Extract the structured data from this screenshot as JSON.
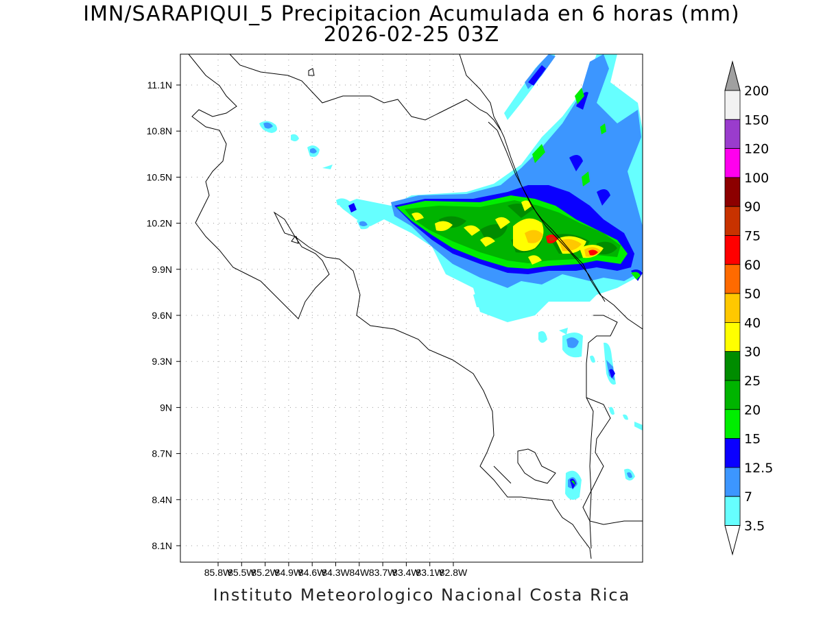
{
  "title": {
    "line1": "IMN/SARAPIQUI_5 Precipitacion Acumulada en 6 horas (mm)",
    "line2": "2026-02-25 03Z"
  },
  "credit": "Instituto Meteorologico Nacional Costa Rica",
  "map": {
    "lon_range": [
      -86.0,
      -83.0
    ],
    "lat_range": [
      8.0,
      11.2
    ],
    "grid": "dotted",
    "lon_labels": [
      {
        "lon": -85.8,
        "text": "85.8W"
      },
      {
        "lon": -85.5,
        "text": "85.5W"
      },
      {
        "lon": -85.2,
        "text": "85.2W"
      },
      {
        "lon": -84.9,
        "text": "84.9W"
      },
      {
        "lon": -84.6,
        "text": "84.6W"
      },
      {
        "lon": -84.3,
        "text": "84.3W"
      },
      {
        "lon": -84.0,
        "text": "84W"
      },
      {
        "lon": -83.7,
        "text": "83.7W"
      },
      {
        "lon": -83.4,
        "text": "83.4W"
      },
      {
        "lon": -83.1,
        "text": "83.1W"
      },
      {
        "lon": -82.8,
        "text": "82.8W"
      }
    ],
    "lat_labels": [
      {
        "lat": 11.1,
        "text": "11.1N"
      },
      {
        "lat": 10.8,
        "text": "10.8N"
      },
      {
        "lat": 10.5,
        "text": "10.5N"
      },
      {
        "lat": 10.2,
        "text": "10.2N"
      },
      {
        "lat": 9.9,
        "text": "9.9N"
      },
      {
        "lat": 9.6,
        "text": "9.6N"
      },
      {
        "lat": 9.3,
        "text": "9.3N"
      },
      {
        "lat": 9.0,
        "text": "9N"
      },
      {
        "lat": 8.7,
        "text": "8.7N"
      },
      {
        "lat": 8.4,
        "text": "8.4N"
      },
      {
        "lat": 8.1,
        "text": "8.1N"
      }
    ]
  },
  "colorbar": {
    "levels": [
      {
        "label": "200",
        "color": "#f2f2f2"
      },
      {
        "label": "150",
        "color": "#9a3ccd"
      },
      {
        "label": "120",
        "color": "#ff00ee"
      },
      {
        "label": "100",
        "color": "#8c0000"
      },
      {
        "label": "90",
        "color": "#c83200"
      },
      {
        "label": "75",
        "color": "#ff0000"
      },
      {
        "label": "60",
        "color": "#ff6a00"
      },
      {
        "label": "50",
        "color": "#ffc800"
      },
      {
        "label": "40",
        "color": "#ffff00"
      },
      {
        "label": "30",
        "color": "#008c00"
      },
      {
        "label": "25",
        "color": "#00b400"
      },
      {
        "label": "20",
        "color": "#00ee00"
      },
      {
        "label": "15",
        "color": "#0a00ff"
      },
      {
        "label": "12.5",
        "color": "#3c96ff"
      },
      {
        "label": "7",
        "color": "#66ffff"
      },
      {
        "label": "3.5",
        "color": "#ffffff"
      }
    ],
    "top_arrow_color": "#a0a0a0",
    "bottom_arrow_color": "#ffffff"
  }
}
